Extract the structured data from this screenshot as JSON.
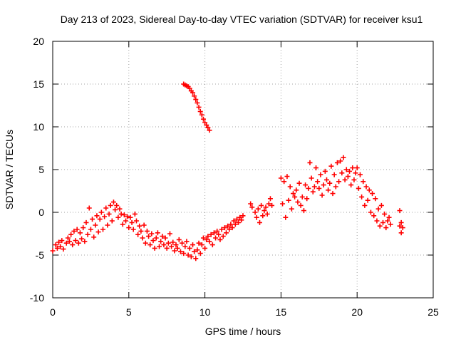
{
  "chart_data": {
    "type": "scatter",
    "title": "Day 213 of 2023, Sidereal Day-to-day VTEC variation (SDTVAR) for receiver ksu1",
    "xlabel": "GPS time / hours",
    "ylabel": "SDTVAR / TECUs",
    "xlim": [
      0,
      25
    ],
    "ylim": [
      -10,
      20
    ],
    "xticks": [
      "0",
      "5",
      "10",
      "15",
      "20",
      "25"
    ],
    "yticks": [
      "-10",
      "-5",
      "0",
      "5",
      "10",
      "15",
      "20"
    ],
    "grid": true,
    "marker": "+",
    "series": [
      {
        "name": "SDTVAR",
        "color": "#ff0000",
        "points": [
          [
            0.0,
            -4.5
          ],
          [
            0.2,
            -3.8
          ],
          [
            0.3,
            -4.2
          ],
          [
            0.4,
            -3.5
          ],
          [
            0.5,
            -4.0
          ],
          [
            0.6,
            -3.3
          ],
          [
            0.7,
            -4.3
          ],
          [
            0.9,
            -3.6
          ],
          [
            1.0,
            -3.0
          ],
          [
            1.1,
            -3.4
          ],
          [
            1.2,
            -2.6
          ],
          [
            1.3,
            -3.8
          ],
          [
            1.4,
            -2.2
          ],
          [
            1.5,
            -3.3
          ],
          [
            1.6,
            -2.0
          ],
          [
            1.7,
            -3.6
          ],
          [
            1.8,
            -2.4
          ],
          [
            1.9,
            -3.1
          ],
          [
            2.0,
            -1.8
          ],
          [
            2.1,
            -3.4
          ],
          [
            2.2,
            -1.2
          ],
          [
            2.3,
            -2.6
          ],
          [
            2.4,
            0.5
          ],
          [
            2.5,
            -2.0
          ],
          [
            2.6,
            -0.8
          ],
          [
            2.7,
            -2.9
          ],
          [
            2.8,
            -1.5
          ],
          [
            2.9,
            -0.4
          ],
          [
            3.0,
            -2.3
          ],
          [
            3.1,
            -0.8
          ],
          [
            3.2,
            0.0
          ],
          [
            3.3,
            -2.0
          ],
          [
            3.4,
            -0.5
          ],
          [
            3.5,
            0.5
          ],
          [
            3.6,
            -1.5
          ],
          [
            3.7,
            -0.2
          ],
          [
            3.8,
            0.8
          ],
          [
            3.9,
            -1.0
          ],
          [
            4.0,
            1.2
          ],
          [
            4.1,
            0.3
          ],
          [
            4.2,
            0.8
          ],
          [
            4.3,
            -0.6
          ],
          [
            4.4,
            0.4
          ],
          [
            4.5,
            -0.2
          ],
          [
            4.6,
            -1.4
          ],
          [
            4.7,
            -0.3
          ],
          [
            4.8,
            -1.0
          ],
          [
            4.9,
            -0.5
          ],
          [
            5.0,
            -1.8
          ],
          [
            5.1,
            -0.6
          ],
          [
            5.2,
            -1.2
          ],
          [
            5.3,
            -2.0
          ],
          [
            5.4,
            -0.2
          ],
          [
            5.5,
            -1.0
          ],
          [
            5.6,
            -2.6
          ],
          [
            5.7,
            -1.6
          ],
          [
            5.8,
            -2.2
          ],
          [
            5.9,
            -3.0
          ],
          [
            6.0,
            -1.5
          ],
          [
            6.1,
            -3.6
          ],
          [
            6.2,
            -2.2
          ],
          [
            6.3,
            -2.8
          ],
          [
            6.4,
            -3.8
          ],
          [
            6.5,
            -2.5
          ],
          [
            6.6,
            -3.3
          ],
          [
            6.7,
            -4.2
          ],
          [
            6.8,
            -3.0
          ],
          [
            6.9,
            -2.4
          ],
          [
            7.0,
            -4.0
          ],
          [
            7.1,
            -3.4
          ],
          [
            7.2,
            -2.8
          ],
          [
            7.3,
            -3.8
          ],
          [
            7.4,
            -3.0
          ],
          [
            7.5,
            -4.2
          ],
          [
            7.6,
            -3.6
          ],
          [
            7.7,
            -2.5
          ],
          [
            7.8,
            -4.0
          ],
          [
            7.9,
            -3.5
          ],
          [
            8.0,
            -4.5
          ],
          [
            8.1,
            -3.8
          ],
          [
            8.2,
            -4.2
          ],
          [
            8.3,
            -3.2
          ],
          [
            8.4,
            -4.6
          ],
          [
            8.5,
            -3.6
          ],
          [
            8.6,
            -4.8
          ],
          [
            8.7,
            -4.0
          ],
          [
            8.8,
            -3.4
          ],
          [
            8.9,
            -5.0
          ],
          [
            9.0,
            -4.2
          ],
          [
            9.1,
            -5.2
          ],
          [
            9.2,
            -3.8
          ],
          [
            9.3,
            -4.6
          ],
          [
            9.4,
            -5.4
          ],
          [
            9.5,
            -4.4
          ],
          [
            9.6,
            -3.6
          ],
          [
            9.7,
            -4.8
          ],
          [
            9.8,
            -3.8
          ],
          [
            9.9,
            -3.0
          ],
          [
            10.0,
            -4.2
          ],
          [
            10.1,
            -3.2
          ],
          [
            10.2,
            -2.8
          ],
          [
            10.3,
            -3.4
          ],
          [
            10.4,
            -2.6
          ],
          [
            10.5,
            -3.8
          ],
          [
            10.6,
            -2.4
          ],
          [
            10.7,
            -3.0
          ],
          [
            10.8,
            -2.2
          ],
          [
            10.9,
            -2.6
          ],
          [
            11.0,
            -3.2
          ],
          [
            11.1,
            -2.0
          ],
          [
            11.2,
            -2.8
          ],
          [
            11.3,
            -1.8
          ],
          [
            11.4,
            -2.4
          ],
          [
            11.5,
            -1.6
          ],
          [
            11.6,
            -2.0
          ],
          [
            11.7,
            -1.4
          ],
          [
            11.8,
            -1.8
          ],
          [
            11.9,
            -1.0
          ],
          [
            12.0,
            -1.4
          ],
          [
            12.1,
            -0.8
          ],
          [
            12.2,
            -1.2
          ],
          [
            12.3,
            -0.6
          ],
          [
            12.4,
            -0.9
          ],
          [
            12.5,
            -0.4
          ],
          [
            8.6,
            15.0
          ],
          [
            8.7,
            14.9
          ],
          [
            8.8,
            14.8
          ],
          [
            8.9,
            14.7
          ],
          [
            9.0,
            14.5
          ],
          [
            9.1,
            14.2
          ],
          [
            9.2,
            14.0
          ],
          [
            9.3,
            13.6
          ],
          [
            9.4,
            13.2
          ],
          [
            9.5,
            12.8
          ],
          [
            9.6,
            12.3
          ],
          [
            9.7,
            11.8
          ],
          [
            9.8,
            11.4
          ],
          [
            9.9,
            10.9
          ],
          [
            10.0,
            10.5
          ],
          [
            10.1,
            10.2
          ],
          [
            10.2,
            9.9
          ],
          [
            10.3,
            9.6
          ],
          [
            13.0,
            1.0
          ],
          [
            13.1,
            0.6
          ],
          [
            13.3,
            0.0
          ],
          [
            13.4,
            -0.6
          ],
          [
            13.5,
            0.4
          ],
          [
            13.6,
            -1.2
          ],
          [
            13.7,
            0.8
          ],
          [
            13.8,
            -0.4
          ],
          [
            13.9,
            0.2
          ],
          [
            14.0,
            0.6
          ],
          [
            14.1,
            -0.2
          ],
          [
            14.2,
            1.0
          ],
          [
            14.3,
            1.6
          ],
          [
            14.4,
            0.8
          ],
          [
            15.0,
            4.0
          ],
          [
            15.1,
            1.0
          ],
          [
            15.2,
            3.6
          ],
          [
            15.3,
            -0.6
          ],
          [
            15.4,
            4.2
          ],
          [
            15.5,
            1.4
          ],
          [
            15.6,
            3.0
          ],
          [
            15.7,
            0.4
          ],
          [
            15.8,
            2.2
          ],
          [
            15.9,
            1.8
          ],
          [
            16.0,
            2.6
          ],
          [
            16.1,
            1.2
          ],
          [
            16.2,
            3.4
          ],
          [
            16.3,
            0.8
          ],
          [
            16.4,
            1.8
          ],
          [
            16.5,
            0.2
          ],
          [
            16.6,
            3.2
          ],
          [
            16.7,
            1.6
          ],
          [
            16.8,
            2.8
          ],
          [
            16.9,
            5.8
          ],
          [
            17.0,
            4.0
          ],
          [
            17.1,
            2.4
          ],
          [
            17.2,
            3.0
          ],
          [
            17.3,
            5.2
          ],
          [
            17.4,
            3.6
          ],
          [
            17.5,
            2.8
          ],
          [
            17.6,
            4.4
          ],
          [
            17.7,
            2.0
          ],
          [
            17.8,
            3.2
          ],
          [
            17.9,
            4.8
          ],
          [
            18.0,
            3.8
          ],
          [
            18.1,
            2.6
          ],
          [
            18.2,
            3.4
          ],
          [
            18.3,
            5.4
          ],
          [
            18.4,
            2.2
          ],
          [
            18.5,
            4.4
          ],
          [
            18.6,
            3.0
          ],
          [
            18.7,
            5.8
          ],
          [
            18.8,
            3.6
          ],
          [
            18.9,
            6.0
          ],
          [
            19.0,
            4.6
          ],
          [
            19.1,
            6.4
          ],
          [
            19.2,
            3.8
          ],
          [
            19.3,
            5.0
          ],
          [
            19.4,
            4.2
          ],
          [
            19.5,
            4.8
          ],
          [
            19.6,
            3.2
          ],
          [
            19.7,
            5.2
          ],
          [
            19.8,
            3.8
          ],
          [
            19.9,
            4.6
          ],
          [
            20.0,
            5.2
          ],
          [
            20.1,
            2.8
          ],
          [
            20.2,
            4.4
          ],
          [
            20.3,
            1.8
          ],
          [
            20.4,
            3.6
          ],
          [
            20.5,
            0.8
          ],
          [
            20.6,
            3.0
          ],
          [
            20.7,
            1.4
          ],
          [
            20.8,
            2.6
          ],
          [
            20.9,
            0.0
          ],
          [
            21.0,
            2.2
          ],
          [
            21.1,
            -0.4
          ],
          [
            21.2,
            1.6
          ],
          [
            21.3,
            -1.0
          ],
          [
            21.4,
            0.4
          ],
          [
            21.5,
            -1.6
          ],
          [
            21.6,
            0.8
          ],
          [
            21.7,
            -1.2
          ],
          [
            21.8,
            -0.2
          ],
          [
            21.9,
            -1.8
          ],
          [
            22.0,
            -1.0
          ],
          [
            22.1,
            -0.6
          ],
          [
            22.2,
            -1.4
          ],
          [
            22.8,
            0.2
          ],
          [
            22.8,
            -1.6
          ],
          [
            22.9,
            -2.4
          ],
          [
            22.9,
            -1.2
          ],
          [
            23.0,
            -1.8
          ]
        ]
      }
    ]
  }
}
